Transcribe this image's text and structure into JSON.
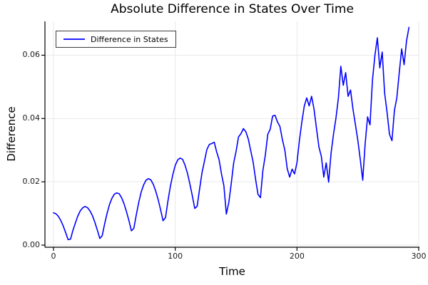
{
  "colors": {
    "line": "#0000ff",
    "grid": "#e9e9e9",
    "axis": "#000000",
    "tick": "#000000",
    "text": "#1a1a1a",
    "legend_border": "#3c3c3c",
    "background": "#ffffff"
  },
  "chart_data": {
    "type": "line",
    "title": "Absolute Difference in States Over Time",
    "xlabel": "Time",
    "ylabel": "Difference",
    "xlim": [
      -7,
      300.5
    ],
    "ylim": [
      -0.0007,
      0.0707
    ],
    "grid": true,
    "legend_position": "top-left",
    "xticks": {
      "values": [
        0,
        100,
        200,
        300
      ],
      "labels": [
        "0",
        "100",
        "200",
        "300"
      ]
    },
    "yticks": {
      "values": [
        0.0,
        0.02,
        0.04,
        0.06
      ],
      "labels": [
        "0.00",
        "0.02",
        "0.04",
        "0.06"
      ]
    },
    "series": [
      {
        "name": "Difference in States",
        "color": "#0000ff",
        "points": [
          [
            0,
            0.0102
          ],
          [
            2,
            0.0099
          ],
          [
            4,
            0.0091
          ],
          [
            6,
            0.0078
          ],
          [
            8,
            0.006
          ],
          [
            10,
            0.0039
          ],
          [
            12,
            0.0017
          ],
          [
            14,
            0.0019
          ],
          [
            16,
            0.0047
          ],
          [
            18,
            0.007
          ],
          [
            20,
            0.0092
          ],
          [
            22,
            0.0108
          ],
          [
            24,
            0.0118
          ],
          [
            26,
            0.0122
          ],
          [
            28,
            0.0118
          ],
          [
            30,
            0.0108
          ],
          [
            32,
            0.0093
          ],
          [
            34,
            0.0072
          ],
          [
            36,
            0.0048
          ],
          [
            38,
            0.0021
          ],
          [
            40,
            0.003
          ],
          [
            42,
            0.0067
          ],
          [
            44,
            0.01
          ],
          [
            46,
            0.0128
          ],
          [
            48,
            0.0148
          ],
          [
            50,
            0.0161
          ],
          [
            52,
            0.0165
          ],
          [
            54,
            0.0162
          ],
          [
            56,
            0.0149
          ],
          [
            58,
            0.013
          ],
          [
            60,
            0.0105
          ],
          [
            62,
            0.0077
          ],
          [
            64,
            0.0045
          ],
          [
            66,
            0.0053
          ],
          [
            68,
            0.0096
          ],
          [
            70,
            0.0135
          ],
          [
            72,
            0.0167
          ],
          [
            74,
            0.019
          ],
          [
            76,
            0.0205
          ],
          [
            78,
            0.021
          ],
          [
            80,
            0.0206
          ],
          [
            82,
            0.0192
          ],
          [
            84,
            0.017
          ],
          [
            86,
            0.0143
          ],
          [
            88,
            0.0111
          ],
          [
            90,
            0.0077
          ],
          [
            92,
            0.0087
          ],
          [
            94,
            0.0139
          ],
          [
            96,
            0.0185
          ],
          [
            98,
            0.0223
          ],
          [
            100,
            0.0252
          ],
          [
            102,
            0.0269
          ],
          [
            104,
            0.0275
          ],
          [
            106,
            0.0271
          ],
          [
            108,
            0.0253
          ],
          [
            110,
            0.0228
          ],
          [
            112,
            0.0194
          ],
          [
            114,
            0.0156
          ],
          [
            116,
            0.0116
          ],
          [
            118,
            0.0123
          ],
          [
            120,
            0.0177
          ],
          [
            122,
            0.0229
          ],
          [
            124,
            0.0265
          ],
          [
            126,
            0.0302
          ],
          [
            128,
            0.0318
          ],
          [
            130,
            0.0321
          ],
          [
            132,
            0.0325
          ],
          [
            134,
            0.0295
          ],
          [
            136,
            0.027
          ],
          [
            138,
            0.0225
          ],
          [
            140,
            0.0187
          ],
          [
            142,
            0.0098
          ],
          [
            144,
            0.0135
          ],
          [
            146,
            0.0195
          ],
          [
            148,
            0.026
          ],
          [
            150,
            0.0297
          ],
          [
            152,
            0.0342
          ],
          [
            154,
            0.0352
          ],
          [
            156,
            0.0368
          ],
          [
            158,
            0.0358
          ],
          [
            160,
            0.0335
          ],
          [
            162,
            0.0298
          ],
          [
            164,
            0.0262
          ],
          [
            166,
            0.0208
          ],
          [
            168,
            0.016
          ],
          [
            170,
            0.015
          ],
          [
            172,
            0.0235
          ],
          [
            174,
            0.0285
          ],
          [
            176,
            0.035
          ],
          [
            178,
            0.0366
          ],
          [
            180,
            0.0408
          ],
          [
            182,
            0.041
          ],
          [
            184,
            0.0389
          ],
          [
            186,
            0.0375
          ],
          [
            188,
            0.0333
          ],
          [
            190,
            0.03
          ],
          [
            192,
            0.0241
          ],
          [
            194,
            0.0215
          ],
          [
            196,
            0.024
          ],
          [
            198,
            0.0225
          ],
          [
            200,
            0.026
          ],
          [
            202,
            0.033
          ],
          [
            204,
            0.039
          ],
          [
            206,
            0.044
          ],
          [
            208,
            0.0465
          ],
          [
            210,
            0.044
          ],
          [
            212,
            0.047
          ],
          [
            214,
            0.043
          ],
          [
            216,
            0.037
          ],
          [
            218,
            0.031
          ],
          [
            220,
            0.028
          ],
          [
            222,
            0.0215
          ],
          [
            224,
            0.026
          ],
          [
            226,
            0.0199
          ],
          [
            228,
            0.029
          ],
          [
            230,
            0.035
          ],
          [
            232,
            0.04
          ],
          [
            234,
            0.0465
          ],
          [
            236,
            0.0565
          ],
          [
            238,
            0.0505
          ],
          [
            240,
            0.0545
          ],
          [
            242,
            0.047
          ],
          [
            244,
            0.049
          ],
          [
            246,
            0.043
          ],
          [
            248,
            0.038
          ],
          [
            250,
            0.033
          ],
          [
            252,
            0.027
          ],
          [
            254,
            0.0205
          ],
          [
            256,
            0.032
          ],
          [
            258,
            0.0405
          ],
          [
            260,
            0.038
          ],
          [
            262,
            0.052
          ],
          [
            264,
            0.06
          ],
          [
            266,
            0.0655
          ],
          [
            268,
            0.056
          ],
          [
            270,
            0.061
          ],
          [
            272,
            0.048
          ],
          [
            274,
            0.042
          ],
          [
            276,
            0.035
          ],
          [
            278,
            0.033
          ],
          [
            280,
            0.0425
          ],
          [
            282,
            0.0465
          ],
          [
            284,
            0.0545
          ],
          [
            286,
            0.062
          ],
          [
            288,
            0.057
          ],
          [
            290,
            0.0645
          ],
          [
            292,
            0.0688
          ]
        ]
      }
    ]
  }
}
